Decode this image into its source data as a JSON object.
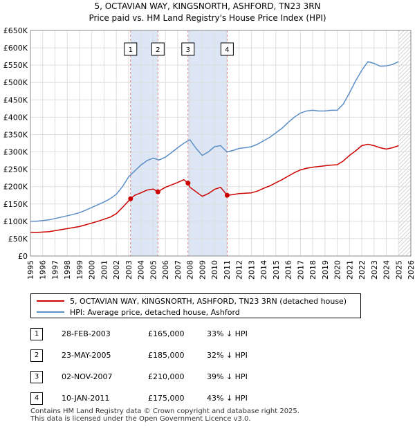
{
  "title_line1": "5, OCTAVIAN WAY, KINGSNORTH, ASHFORD, TN23 3RN",
  "title_line2": "Price paid vs. HM Land Registry's House Price Index (HPI)",
  "colors": {
    "property": "#cc0000",
    "hpi": "#5b8ec8",
    "shade": "#dce6f5",
    "grid": "#dddddd",
    "vline": "#e08080"
  },
  "legend": {
    "property": "5, OCTAVIAN WAY, KINGSNORTH, ASHFORD, TN23 3RN (detached house)",
    "hpi": "HPI: Average price, detached house, Ashford"
  },
  "sales": [
    {
      "num": "1",
      "date": "28-FEB-2003",
      "price": "£165,000",
      "hpi": "33% ↓ HPI"
    },
    {
      "num": "2",
      "date": "23-MAY-2005",
      "price": "£185,000",
      "hpi": "32% ↓ HPI"
    },
    {
      "num": "3",
      "date": "02-NOV-2007",
      "price": "£210,000",
      "hpi": "39% ↓ HPI"
    },
    {
      "num": "4",
      "date": "10-JAN-2011",
      "price": "£175,000",
      "hpi": "43% ↓ HPI"
    }
  ],
  "footer_line1": "Contains HM Land Registry data © Crown copyright and database right 2025.",
  "footer_line2": "This data is licensed under the Open Government Licence v3.0.",
  "chart_data": {
    "type": "line",
    "title": "5, OCTAVIAN WAY, KINGSNORTH, ASHFORD, TN23 3RN",
    "subtitle": "Price paid vs. HM Land Registry's House Price Index (HPI)",
    "xlim": [
      1995,
      2026
    ],
    "ylim": [
      0,
      650000
    ],
    "x_ticks": [
      1995,
      1996,
      1997,
      1998,
      1999,
      2000,
      2001,
      2002,
      2003,
      2004,
      2005,
      2006,
      2007,
      2008,
      2009,
      2010,
      2011,
      2012,
      2013,
      2014,
      2015,
      2016,
      2017,
      2018,
      2019,
      2020,
      2021,
      2022,
      2023,
      2024,
      2025,
      2026
    ],
    "y_ticks": [
      0,
      50000,
      100000,
      150000,
      200000,
      250000,
      300000,
      350000,
      400000,
      450000,
      500000,
      550000,
      600000,
      650000
    ],
    "y_tick_labels": [
      "£0",
      "£50K",
      "£100K",
      "£150K",
      "£200K",
      "£250K",
      "£300K",
      "£350K",
      "£400K",
      "£450K",
      "£500K",
      "£550K",
      "£600K",
      "£650K"
    ],
    "grid": true,
    "shaded_ranges": [
      [
        2003.16,
        2005.39
      ],
      [
        2007.84,
        2011.03
      ]
    ],
    "hatched_from": 2025.0,
    "markers": [
      {
        "label": "1",
        "x": 2003.16,
        "y": 165000
      },
      {
        "label": "2",
        "x": 2005.39,
        "y": 185000
      },
      {
        "label": "3",
        "x": 2007.84,
        "y": 210000
      },
      {
        "label": "4",
        "x": 2011.03,
        "y": 175000
      }
    ],
    "series": [
      {
        "name": "HPI: Average price, detached house, Ashford",
        "x": [
          1995,
          1995.5,
          1996,
          1996.5,
          1997,
          1997.5,
          1998,
          1998.5,
          1999,
          1999.5,
          2000,
          2000.5,
          2001,
          2001.5,
          2002,
          2002.5,
          2003,
          2003.5,
          2004,
          2004.5,
          2005,
          2005.5,
          2006,
          2006.5,
          2007,
          2007.5,
          2008,
          2008.5,
          2009,
          2009.5,
          2010,
          2010.5,
          2011,
          2011.5,
          2012,
          2012.5,
          2013,
          2013.5,
          2014,
          2014.5,
          2015,
          2015.5,
          2016,
          2016.5,
          2017,
          2017.5,
          2018,
          2018.5,
          2019,
          2019.5,
          2020,
          2020.5,
          2021,
          2021.5,
          2022,
          2022.5,
          2023,
          2023.5,
          2024,
          2024.5,
          2025
        ],
        "y": [
          100000,
          100000,
          102000,
          104000,
          108000,
          112000,
          116000,
          120000,
          125000,
          132000,
          140000,
          148000,
          156000,
          165000,
          178000,
          200000,
          228000,
          245000,
          262000,
          275000,
          282000,
          277000,
          285000,
          298000,
          312000,
          325000,
          335000,
          310000,
          290000,
          300000,
          315000,
          318000,
          300000,
          304000,
          310000,
          312000,
          315000,
          322000,
          332000,
          342000,
          355000,
          368000,
          385000,
          400000,
          412000,
          418000,
          420000,
          418000,
          418000,
          420000,
          420000,
          438000,
          470000,
          505000,
          535000,
          560000,
          555000,
          547000,
          548000,
          552000,
          560000
        ]
      },
      {
        "name": "5, OCTAVIAN WAY, KINGSNORTH, ASHFORD, TN23 3RN (detached house)",
        "x": [
          1995,
          1995.5,
          1996,
          1996.5,
          1997,
          1997.5,
          1998,
          1998.5,
          1999,
          1999.5,
          2000,
          2000.5,
          2001,
          2001.5,
          2002,
          2002.5,
          2003.16,
          2003.5,
          2004,
          2004.5,
          2005,
          2005.39,
          2005.7,
          2006,
          2006.5,
          2007,
          2007.5,
          2007.84,
          2008,
          2008.5,
          2009,
          2009.5,
          2010,
          2010.5,
          2011.03,
          2011.5,
          2012,
          2012.5,
          2013,
          2013.5,
          2014,
          2014.5,
          2015,
          2015.5,
          2016,
          2016.5,
          2017,
          2017.5,
          2018,
          2018.5,
          2019,
          2019.5,
          2020,
          2020.5,
          2021,
          2021.5,
          2022,
          2022.5,
          2023,
          2023.5,
          2024,
          2024.5,
          2025
        ],
        "y": [
          68000,
          68000,
          69000,
          70000,
          73000,
          76000,
          79000,
          82000,
          85000,
          90000,
          95000,
          100000,
          106000,
          112000,
          122000,
          140000,
          165000,
          175000,
          182000,
          190000,
          193000,
          185000,
          192000,
          198000,
          205000,
          212000,
          220000,
          210000,
          198000,
          185000,
          172000,
          180000,
          192000,
          198000,
          175000,
          177000,
          180000,
          181000,
          182000,
          187000,
          195000,
          202000,
          211000,
          220000,
          230000,
          240000,
          248000,
          253000,
          256000,
          258000,
          260000,
          262000,
          263000,
          274000,
          290000,
          303000,
          318000,
          322000,
          318000,
          312000,
          308000,
          312000,
          318000
        ]
      }
    ]
  }
}
